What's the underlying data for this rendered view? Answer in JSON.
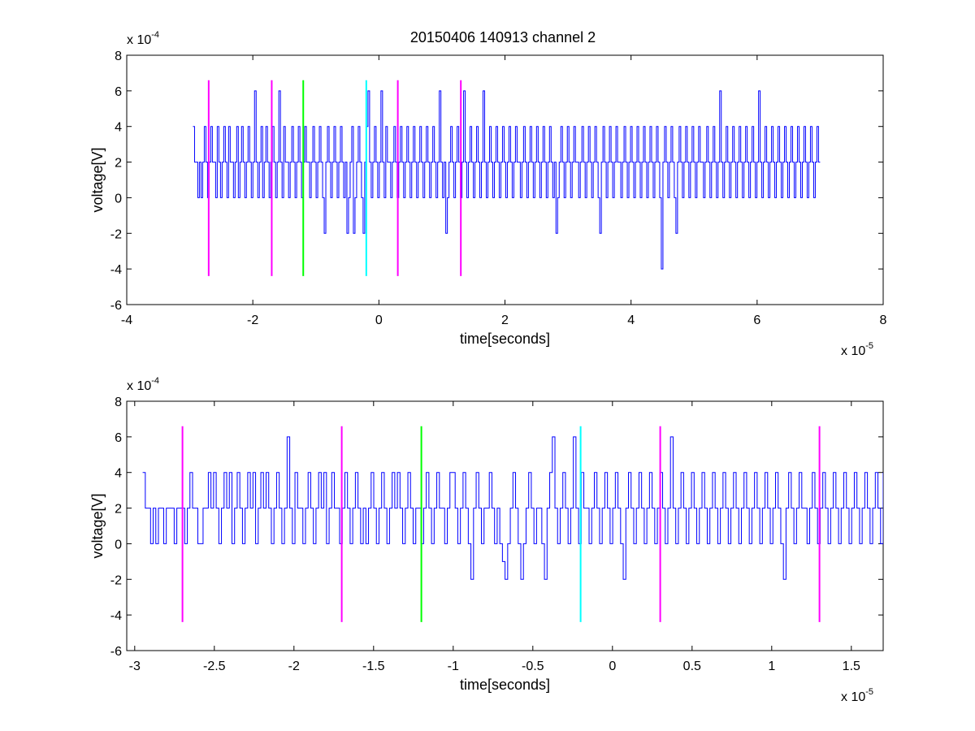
{
  "figure_title": "20150406 140913 channel 2",
  "colors": {
    "signal": "#0000ff",
    "magenta": "#ff00ff",
    "green": "#00ff00",
    "cyan": "#00ffff",
    "axes": "#000000",
    "background": "#ffffff"
  },
  "chart_data": [
    {
      "type": "line",
      "title": "20150406 140913 channel 2",
      "xlabel": "time[seconds]",
      "ylabel": "voltage[V]",
      "x_multiplier_label": "x 10",
      "x_multiplier_exp": "-5",
      "y_multiplier_label": "x 10",
      "y_multiplier_exp": "-4",
      "xlim": [
        -4,
        8
      ],
      "ylim": [
        -6,
        8
      ],
      "x_ticks": [
        -4,
        -2,
        0,
        2,
        4,
        6,
        8
      ],
      "x_tick_labels": [
        "-4",
        "-2",
        "0",
        "2",
        "4",
        "6",
        "8"
      ],
      "y_ticks": [
        -6,
        -4,
        -2,
        0,
        2,
        4,
        6,
        8
      ],
      "y_tick_labels": [
        "-6",
        "-4",
        "-2",
        "0",
        "2",
        "4",
        "6",
        "8"
      ],
      "grid": false,
      "signal": {
        "x_start": -2.95,
        "x_end": 7.0,
        "values": [
          4,
          2,
          2,
          0,
          2,
          0,
          2,
          4,
          2,
          0,
          2,
          4,
          2,
          2,
          0,
          4,
          2,
          0,
          2,
          4,
          2,
          0,
          4,
          2,
          2,
          0,
          2,
          4,
          0,
          2,
          4,
          2,
          0,
          2,
          4,
          2,
          0,
          2,
          6,
          2,
          0,
          2,
          4,
          0,
          2,
          4,
          2,
          0,
          2,
          4,
          2,
          0,
          2,
          6,
          2,
          0,
          4,
          2,
          2,
          0,
          2,
          4,
          2,
          0,
          2,
          4,
          2,
          0,
          2,
          4,
          2,
          2,
          0,
          2,
          4,
          2,
          0,
          2,
          4,
          2,
          0,
          -2,
          2,
          4,
          2,
          0,
          2,
          4,
          2,
          0,
          2,
          4,
          2,
          0,
          2,
          -2,
          0,
          2,
          4,
          -2,
          0,
          2,
          4,
          2,
          0,
          -2,
          2,
          4,
          6,
          2,
          0,
          2,
          4,
          2,
          0,
          2,
          6,
          2,
          0,
          4,
          2,
          2,
          0,
          2,
          4,
          2,
          0,
          2,
          4,
          2,
          0,
          2,
          4,
          2,
          0,
          2,
          4,
          2,
          0,
          2,
          4,
          2,
          0,
          2,
          4,
          2,
          0,
          2,
          4,
          2,
          0,
          2,
          6,
          2,
          0,
          2,
          -2,
          0,
          2,
          4,
          2,
          0,
          2,
          4,
          2,
          0,
          2,
          6,
          2,
          0,
          2,
          4,
          2,
          0,
          2,
          4,
          2,
          0,
          2,
          6,
          2,
          0,
          2,
          4,
          2,
          0,
          2,
          4,
          2,
          0,
          2,
          4,
          2,
          0,
          2,
          4,
          2,
          0,
          2,
          4,
          2,
          2,
          0,
          2,
          4,
          2,
          0,
          2,
          4,
          2,
          0,
          2,
          4,
          2,
          0,
          2,
          4,
          2,
          0,
          2,
          4,
          2,
          0,
          2,
          -2,
          0,
          2,
          4,
          2,
          0,
          2,
          4,
          2,
          0,
          2,
          4,
          2,
          2,
          0,
          2,
          4,
          2,
          0,
          2,
          4,
          2,
          0,
          2,
          4,
          2,
          0,
          -2,
          2,
          4,
          2,
          0,
          2,
          4,
          2,
          0,
          2,
          4,
          2,
          2,
          0,
          2,
          4,
          2,
          0,
          2,
          4,
          2,
          0,
          2,
          4,
          2,
          0,
          2,
          4,
          2,
          0,
          2,
          4,
          2,
          0,
          2,
          4,
          2,
          0,
          -4,
          2,
          4,
          2,
          0,
          2,
          4,
          2,
          0,
          -2,
          2,
          4,
          2,
          0,
          2,
          4,
          2,
          0,
          2,
          4,
          2,
          0,
          2,
          4,
          2,
          2,
          0,
          2,
          4,
          2,
          0,
          2,
          4,
          2,
          0,
          2,
          6,
          2,
          0,
          2,
          4,
          2,
          0,
          2,
          4,
          2,
          0,
          2,
          4,
          2,
          0,
          2,
          4,
          2,
          0,
          2,
          4,
          2,
          0,
          2,
          6,
          2,
          0,
          2,
          4,
          2,
          0,
          2,
          4,
          2,
          0,
          2,
          4,
          2,
          0,
          2,
          4,
          2,
          0,
          2,
          4,
          2,
          0,
          2,
          4,
          2,
          0,
          2,
          4,
          2,
          0,
          2,
          4,
          2,
          0,
          2,
          4,
          2,
          2
        ]
      },
      "vertical_markers": [
        {
          "x": -2.7,
          "color": "magenta",
          "y_range": [
            -4.4,
            6.6
          ]
        },
        {
          "x": -1.7,
          "color": "magenta",
          "y_range": [
            -4.4,
            6.6
          ]
        },
        {
          "x": -1.2,
          "color": "green",
          "y_range": [
            -4.4,
            6.6
          ]
        },
        {
          "x": -0.2,
          "color": "cyan",
          "y_range": [
            -4.4,
            6.6
          ]
        },
        {
          "x": 0.3,
          "color": "magenta",
          "y_range": [
            -4.4,
            6.6
          ]
        },
        {
          "x": 1.3,
          "color": "magenta",
          "y_range": [
            -4.4,
            6.6
          ]
        }
      ]
    },
    {
      "type": "line",
      "title": "",
      "xlabel": "time[seconds]",
      "ylabel": "voltage[V]",
      "x_multiplier_label": "x 10",
      "x_multiplier_exp": "-5",
      "y_multiplier_label": "x 10",
      "y_multiplier_exp": "-4",
      "xlim": [
        -3.05,
        1.7
      ],
      "ylim": [
        -6,
        8
      ],
      "x_ticks": [
        -3,
        -2.5,
        -2,
        -1.5,
        -1,
        -0.5,
        0,
        0.5,
        1,
        1.5
      ],
      "x_tick_labels": [
        "-3",
        "-2.5",
        "-2",
        "-1.5",
        "-1",
        "-0.5",
        "0",
        "0.5",
        "1",
        "1.5"
      ],
      "y_ticks": [
        -6,
        -4,
        -2,
        0,
        2,
        4,
        6,
        8
      ],
      "y_tick_labels": [
        "-6",
        "-4",
        "-2",
        "0",
        "2",
        "4",
        "6",
        "8"
      ],
      "grid": false,
      "signal": {
        "x_start": -2.95,
        "x_end": 1.7,
        "values": [
          4,
          2,
          2,
          0,
          2,
          0,
          2,
          2,
          0,
          2,
          2,
          2,
          0,
          2,
          2,
          2,
          0,
          2,
          4,
          2,
          2,
          0,
          0,
          2,
          2,
          4,
          2,
          4,
          2,
          0,
          2,
          4,
          2,
          4,
          0,
          2,
          4,
          2,
          0,
          2,
          4,
          2,
          4,
          0,
          2,
          4,
          2,
          4,
          2,
          0,
          2,
          4,
          2,
          0,
          2,
          6,
          2,
          0,
          4,
          2,
          2,
          0,
          2,
          4,
          2,
          0,
          2,
          4,
          2,
          4,
          0,
          2,
          4,
          2,
          2,
          0,
          2,
          4,
          2,
          0,
          2,
          4,
          2,
          0,
          2,
          0,
          2,
          4,
          2,
          0,
          2,
          4,
          2,
          0,
          2,
          4,
          2,
          4,
          2,
          0,
          2,
          4,
          2,
          0,
          2,
          2,
          0,
          2,
          4,
          2,
          0,
          2,
          4,
          2,
          2,
          0,
          2,
          4,
          4,
          2,
          0,
          2,
          4,
          2,
          0,
          -2,
          2,
          4,
          2,
          0,
          2,
          2,
          4,
          2,
          0,
          2,
          0,
          -1,
          -2,
          0,
          2,
          4,
          2,
          0,
          -2,
          0,
          2,
          4,
          2,
          0,
          2,
          2,
          0,
          -2,
          2,
          4,
          6,
          2,
          0,
          2,
          4,
          2,
          0,
          2,
          6,
          2,
          0,
          4,
          2,
          2,
          0,
          2,
          4,
          2,
          0,
          2,
          4,
          2,
          0,
          2,
          4,
          2,
          0,
          -2,
          2,
          4,
          2,
          0,
          2,
          4,
          2,
          0,
          2,
          4,
          2,
          0,
          2,
          4,
          2,
          0,
          2,
          6,
          2,
          0,
          2,
          4,
          2,
          0,
          2,
          4,
          2,
          0,
          2,
          4,
          2,
          0,
          2,
          4,
          2,
          0,
          2,
          4,
          2,
          0,
          2,
          4,
          2,
          0,
          2,
          4,
          2,
          0,
          2,
          4,
          2,
          0,
          2,
          4,
          2,
          0,
          2,
          4,
          2,
          0,
          -2,
          2,
          4,
          2,
          0,
          2,
          4,
          2,
          2,
          0,
          2,
          4,
          2,
          0,
          2,
          4,
          2,
          0,
          2,
          4,
          2,
          0,
          2,
          4,
          2,
          0,
          2,
          4,
          2,
          0,
          2,
          4,
          2,
          0,
          2,
          4,
          2,
          0,
          4
        ]
      },
      "vertical_markers": [
        {
          "x": -2.7,
          "color": "magenta",
          "y_range": [
            -4.4,
            6.6
          ]
        },
        {
          "x": -1.7,
          "color": "magenta",
          "y_range": [
            -4.4,
            6.6
          ]
        },
        {
          "x": -1.2,
          "color": "green",
          "y_range": [
            -4.4,
            6.6
          ]
        },
        {
          "x": -0.2,
          "color": "cyan",
          "y_range": [
            -4.4,
            6.6
          ]
        },
        {
          "x": 0.3,
          "color": "magenta",
          "y_range": [
            -4.4,
            6.6
          ]
        },
        {
          "x": 1.3,
          "color": "magenta",
          "y_range": [
            -4.4,
            6.6
          ]
        }
      ]
    }
  ]
}
